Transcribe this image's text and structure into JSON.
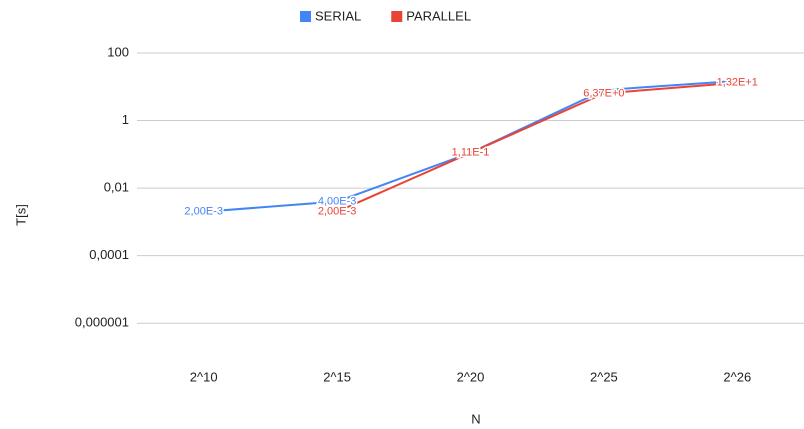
{
  "chart_data": {
    "type": "line",
    "categories": [
      "2^10",
      "2^15",
      "2^20",
      "2^25",
      "2^26"
    ],
    "series": [
      {
        "name": "SERIAL",
        "color": "#4285f4",
        "values": [
          0.002,
          0.004,
          0.111,
          8,
          15
        ],
        "value_labels": [
          "2,00E-3",
          "4,00E-3",
          null,
          null,
          null
        ]
      },
      {
        "name": "PARALLEL",
        "color": "#ea4335",
        "values": [
          null,
          0.002,
          0.111,
          6.37,
          13.2
        ],
        "value_labels": [
          null,
          "2,00E-3",
          "1,11E-1",
          "6,37E+0",
          "1,32E+1"
        ]
      }
    ],
    "ylabel": "T[s]",
    "xlabel": "N",
    "log_y": true,
    "ylim": [
      1e-07,
      100
    ],
    "yticks": [
      {
        "value": 1e-06,
        "label": "0,000001"
      },
      {
        "value": 0.0001,
        "label": "0,0001"
      },
      {
        "value": 0.01,
        "label": "0,01"
      },
      1,
      100
    ],
    "grid": true,
    "legend": "top"
  }
}
